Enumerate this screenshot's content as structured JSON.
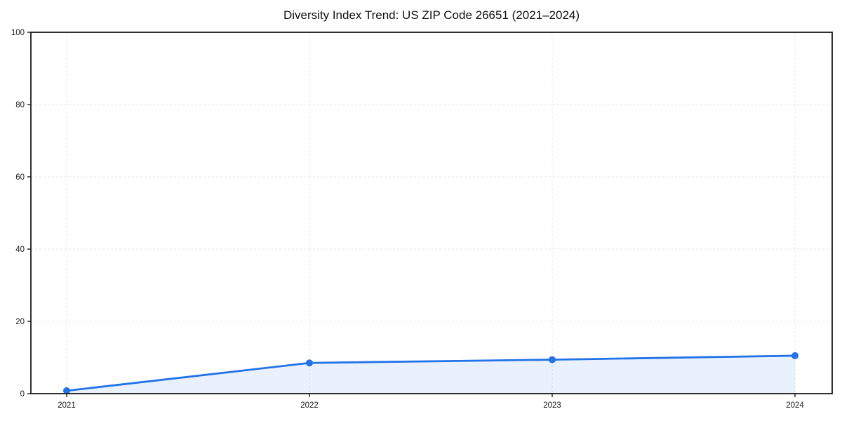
{
  "chart_data": {
    "type": "line",
    "title": "Diversity Index Trend: US ZIP Code 26651 (2021–2024)",
    "x": [
      2021,
      2022,
      2023,
      2024
    ],
    "x_tick_labels": [
      "2021",
      "2022",
      "2023",
      "2024"
    ],
    "series": [
      {
        "name": "Diversity Index",
        "values": [
          0.8,
          8.5,
          9.4,
          10.5
        ]
      }
    ],
    "xlabel": "",
    "ylabel": "",
    "ylim": [
      0,
      100
    ],
    "yticks": [
      0,
      20,
      40,
      60,
      80,
      100
    ],
    "grid": "both, dashed",
    "legend": "none",
    "area_fill": true,
    "marker": "circle",
    "colors": {
      "line": "#2272e8",
      "marker": "#2272e8",
      "area_fill": "rgba(34,114,232,0.10)",
      "gridline": "#e4e4e4",
      "spine": "#1a1a1a",
      "tick_text": "#1a1a1a",
      "background": "#ffffff"
    }
  }
}
